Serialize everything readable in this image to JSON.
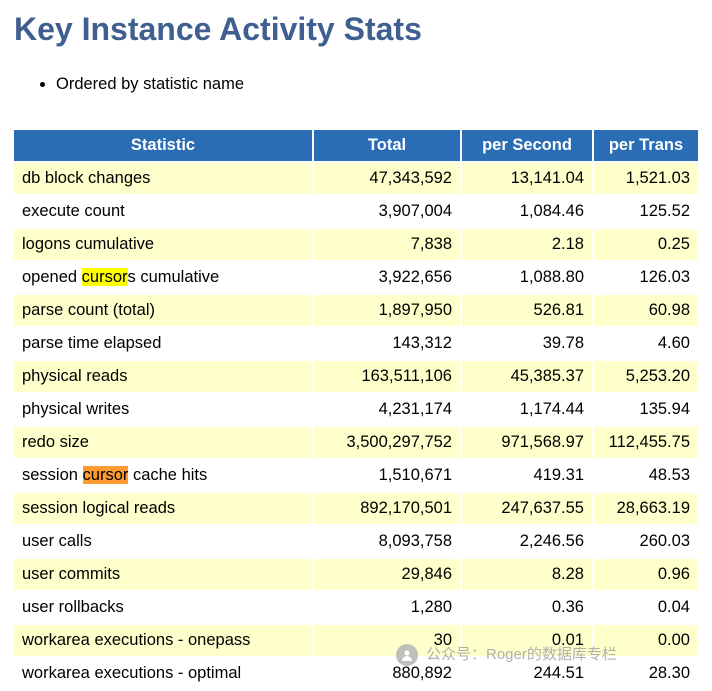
{
  "colors": {
    "title-color": "#3e5f8f",
    "header-bg": "#2a6db5",
    "row-yellow": "#ffffcc",
    "highlight-yellow": "#ffff00",
    "highlight-orange": "#ff9b32",
    "watermark-gray": "#a8a8a8"
  },
  "page": {
    "title": "Key Instance Activity Stats",
    "note": "Ordered by statistic name"
  },
  "table": {
    "headers": [
      "Statistic",
      "Total",
      "per Second",
      "per Trans"
    ],
    "rows": [
      {
        "statistic": [
          {
            "text": "db block changes"
          }
        ],
        "total": "47,343,592",
        "per_second": "13,141.04",
        "per_trans": "1,521.03"
      },
      {
        "statistic": [
          {
            "text": "execute count"
          }
        ],
        "total": "3,907,004",
        "per_second": "1,084.46",
        "per_trans": "125.52"
      },
      {
        "statistic": [
          {
            "text": "logons cumulative"
          }
        ],
        "total": "7,838",
        "per_second": "2.18",
        "per_trans": "0.25"
      },
      {
        "statistic": [
          {
            "text": "opened "
          },
          {
            "text": "cursor",
            "mark": "yellow"
          },
          {
            "text": "s cumulative"
          }
        ],
        "total": "3,922,656",
        "per_second": "1,088.80",
        "per_trans": "126.03"
      },
      {
        "statistic": [
          {
            "text": "parse count (total)"
          }
        ],
        "total": "1,897,950",
        "per_second": "526.81",
        "per_trans": "60.98"
      },
      {
        "statistic": [
          {
            "text": "parse time elapsed"
          }
        ],
        "total": "143,312",
        "per_second": "39.78",
        "per_trans": "4.60"
      },
      {
        "statistic": [
          {
            "text": "physical reads"
          }
        ],
        "total": "163,511,106",
        "per_second": "45,385.37",
        "per_trans": "5,253.20"
      },
      {
        "statistic": [
          {
            "text": "physical writes"
          }
        ],
        "total": "4,231,174",
        "per_second": "1,174.44",
        "per_trans": "135.94"
      },
      {
        "statistic": [
          {
            "text": "redo size"
          }
        ],
        "total": "3,500,297,752",
        "per_second": "971,568.97",
        "per_trans": "112,455.75"
      },
      {
        "statistic": [
          {
            "text": "session "
          },
          {
            "text": "cursor",
            "mark": "orange"
          },
          {
            "text": " cache hits"
          }
        ],
        "total": "1,510,671",
        "per_second": "419.31",
        "per_trans": "48.53"
      },
      {
        "statistic": [
          {
            "text": "session logical reads"
          }
        ],
        "total": "892,170,501",
        "per_second": "247,637.55",
        "per_trans": "28,663.19"
      },
      {
        "statistic": [
          {
            "text": "user calls"
          }
        ],
        "total": "8,093,758",
        "per_second": "2,246.56",
        "per_trans": "260.03"
      },
      {
        "statistic": [
          {
            "text": "user commits"
          }
        ],
        "total": "29,846",
        "per_second": "8.28",
        "per_trans": "0.96"
      },
      {
        "statistic": [
          {
            "text": "user rollbacks"
          }
        ],
        "total": "1,280",
        "per_second": "0.36",
        "per_trans": "0.04"
      },
      {
        "statistic": [
          {
            "text": "workarea executions - onepass"
          }
        ],
        "total": "30",
        "per_second": "0.01",
        "per_trans": "0.00"
      },
      {
        "statistic": [
          {
            "text": "workarea executions - optimal"
          }
        ],
        "total": "880,892",
        "per_second": "244.51",
        "per_trans": "28.30"
      }
    ]
  },
  "watermark": {
    "text": "公众号：Roger的数据库专栏"
  }
}
